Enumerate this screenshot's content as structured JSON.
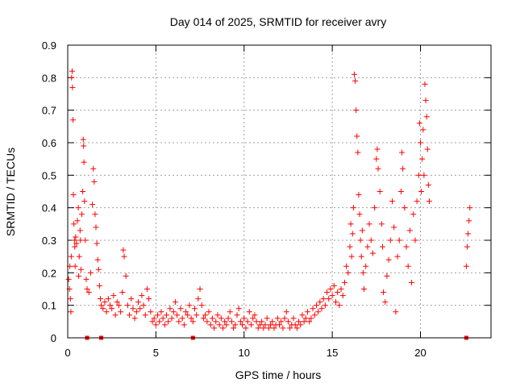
{
  "chart_data": {
    "type": "scatter",
    "title": "Day 014 of 2025, SRMTID for receiver avry",
    "xlabel": "GPS time / hours",
    "ylabel": "SRMTID / TECUs",
    "xlim": [
      0,
      24
    ],
    "ylim": [
      0,
      0.9
    ],
    "xticks": [
      0,
      5,
      10,
      15,
      20
    ],
    "yticks": [
      0,
      0.1,
      0.2,
      0.3,
      0.4,
      0.5,
      0.6,
      0.7,
      0.8,
      0.9
    ],
    "xtick_labels": [
      "0",
      "5",
      "10",
      "15",
      "20"
    ],
    "ytick_labels": [
      "0",
      "0.1",
      "0.2",
      "0.3",
      "0.4",
      "0.5",
      "0.6",
      "0.7",
      "0.8",
      "0.9"
    ],
    "grid": true,
    "marker": "+",
    "color": "#ff0000",
    "series": [
      {
        "name": "SRMTID",
        "points": [
          [
            0.05,
            0.18
          ],
          [
            0.1,
            0.15
          ],
          [
            0.12,
            0.22
          ],
          [
            0.15,
            0.12
          ],
          [
            0.18,
            0.08
          ],
          [
            0.2,
            0.25
          ],
          [
            0.22,
            0.8
          ],
          [
            0.25,
            0.82
          ],
          [
            0.27,
            0.77
          ],
          [
            0.3,
            0.67
          ],
          [
            0.32,
            0.44
          ],
          [
            0.35,
            0.35
          ],
          [
            0.38,
            0.3
          ],
          [
            0.4,
            0.28
          ],
          [
            0.42,
            0.22
          ],
          [
            0.45,
            0.31
          ],
          [
            0.5,
            0.29
          ],
          [
            0.55,
            0.36
          ],
          [
            0.6,
            0.4
          ],
          [
            0.62,
            0.19
          ],
          [
            0.65,
            0.25
          ],
          [
            0.7,
            0.33
          ],
          [
            0.72,
            0.3
          ],
          [
            0.75,
            0.21
          ],
          [
            0.8,
            0.38
          ],
          [
            0.85,
            0.45
          ],
          [
            0.88,
            0.61
          ],
          [
            0.9,
            0.59
          ],
          [
            0.92,
            0.54
          ],
          [
            0.95,
            0.42
          ],
          [
            1.0,
            0.3
          ],
          [
            1.05,
            0.18
          ],
          [
            1.1,
            0.15
          ],
          [
            1.2,
            0.14
          ],
          [
            1.3,
            0.2
          ],
          [
            1.4,
            0.41
          ],
          [
            1.45,
            0.52
          ],
          [
            1.5,
            0.48
          ],
          [
            1.55,
            0.38
          ],
          [
            1.6,
            0.34
          ],
          [
            1.65,
            0.29
          ],
          [
            1.7,
            0.24
          ],
          [
            1.75,
            0.21
          ],
          [
            1.8,
            0.16
          ],
          [
            1.85,
            0.12
          ],
          [
            1.9,
            0.1
          ],
          [
            2.0,
            0.09
          ],
          [
            2.1,
            0.11
          ],
          [
            2.2,
            0.08
          ],
          [
            2.3,
            0.12
          ],
          [
            2.4,
            0.1
          ],
          [
            2.5,
            0.09
          ],
          [
            2.6,
            0.13
          ],
          [
            2.7,
            0.07
          ],
          [
            2.8,
            0.11
          ],
          [
            2.9,
            0.1
          ],
          [
            3.0,
            0.08
          ],
          [
            3.1,
            0.14
          ],
          [
            3.15,
            0.27
          ],
          [
            3.2,
            0.25
          ],
          [
            3.3,
            0.19
          ],
          [
            3.4,
            0.1
          ],
          [
            3.5,
            0.07
          ],
          [
            3.6,
            0.12
          ],
          [
            3.7,
            0.09
          ],
          [
            3.8,
            0.06
          ],
          [
            3.9,
            0.08
          ],
          [
            4.0,
            0.11
          ],
          [
            4.1,
            0.09
          ],
          [
            4.2,
            0.13
          ],
          [
            4.3,
            0.1
          ],
          [
            4.4,
            0.07
          ],
          [
            4.5,
            0.15
          ],
          [
            4.6,
            0.12
          ],
          [
            4.7,
            0.08
          ],
          [
            4.8,
            0.05
          ],
          [
            4.9,
            0.06
          ],
          [
            5.0,
            0.04
          ],
          [
            5.1,
            0.07
          ],
          [
            5.2,
            0.05
          ],
          [
            5.3,
            0.08
          ],
          [
            5.4,
            0.06
          ],
          [
            5.5,
            0.04
          ],
          [
            5.6,
            0.07
          ],
          [
            5.7,
            0.05
          ],
          [
            5.8,
            0.09
          ],
          [
            5.9,
            0.06
          ],
          [
            6.0,
            0.08
          ],
          [
            6.1,
            0.11
          ],
          [
            6.2,
            0.07
          ],
          [
            6.3,
            0.05
          ],
          [
            6.4,
            0.09
          ],
          [
            6.5,
            0.06
          ],
          [
            6.6,
            0.04
          ],
          [
            6.7,
            0.08
          ],
          [
            6.8,
            0.07
          ],
          [
            6.9,
            0.1
          ],
          [
            7.0,
            0.06
          ],
          [
            7.1,
            0.05
          ],
          [
            7.2,
            0.09
          ],
          [
            7.3,
            0.07
          ],
          [
            7.4,
            0.12
          ],
          [
            7.5,
            0.15
          ],
          [
            7.6,
            0.1
          ],
          [
            7.7,
            0.06
          ],
          [
            7.8,
            0.07
          ],
          [
            7.9,
            0.05
          ],
          [
            8.0,
            0.08
          ],
          [
            8.1,
            0.04
          ],
          [
            8.2,
            0.06
          ],
          [
            8.3,
            0.03
          ],
          [
            8.4,
            0.05
          ],
          [
            8.5,
            0.07
          ],
          [
            8.6,
            0.04
          ],
          [
            8.7,
            0.06
          ],
          [
            8.8,
            0.03
          ],
          [
            8.9,
            0.05
          ],
          [
            9.0,
            0.04
          ],
          [
            9.1,
            0.06
          ],
          [
            9.2,
            0.08
          ],
          [
            9.3,
            0.05
          ],
          [
            9.4,
            0.03
          ],
          [
            9.5,
            0.04
          ],
          [
            9.6,
            0.07
          ],
          [
            9.7,
            0.09
          ],
          [
            9.8,
            0.05
          ],
          [
            9.9,
            0.04
          ],
          [
            10.0,
            0.06
          ],
          [
            10.1,
            0.03
          ],
          [
            10.2,
            0.05
          ],
          [
            10.3,
            0.08
          ],
          [
            10.4,
            0.04
          ],
          [
            10.5,
            0.06
          ],
          [
            10.6,
            0.07
          ],
          [
            10.7,
            0.05
          ],
          [
            10.8,
            0.03
          ],
          [
            10.9,
            0.04
          ],
          [
            11.0,
            0.05
          ],
          [
            11.1,
            0.03
          ],
          [
            11.2,
            0.04
          ],
          [
            11.3,
            0.06
          ],
          [
            11.4,
            0.03
          ],
          [
            11.5,
            0.04
          ],
          [
            11.6,
            0.05
          ],
          [
            11.7,
            0.03
          ],
          [
            11.8,
            0.04
          ],
          [
            11.9,
            0.06
          ],
          [
            12.0,
            0.04
          ],
          [
            12.1,
            0.05
          ],
          [
            12.2,
            0.03
          ],
          [
            12.3,
            0.06
          ],
          [
            12.4,
            0.08
          ],
          [
            12.5,
            0.05
          ],
          [
            12.6,
            0.03
          ],
          [
            12.7,
            0.04
          ],
          [
            12.8,
            0.06
          ],
          [
            12.9,
            0.04
          ],
          [
            13.0,
            0.03
          ],
          [
            13.1,
            0.05
          ],
          [
            13.2,
            0.04
          ],
          [
            13.3,
            0.07
          ],
          [
            13.4,
            0.05
          ],
          [
            13.5,
            0.06
          ],
          [
            13.6,
            0.08
          ],
          [
            13.7,
            0.05
          ],
          [
            13.8,
            0.06
          ],
          [
            13.9,
            0.09
          ],
          [
            14.0,
            0.07
          ],
          [
            14.1,
            0.1
          ],
          [
            14.2,
            0.08
          ],
          [
            14.3,
            0.11
          ],
          [
            14.4,
            0.09
          ],
          [
            14.5,
            0.12
          ],
          [
            14.6,
            0.1
          ],
          [
            14.7,
            0.14
          ],
          [
            14.8,
            0.12
          ],
          [
            14.9,
            0.15
          ],
          [
            15.0,
            0.13
          ],
          [
            15.1,
            0.16
          ],
          [
            15.2,
            0.11
          ],
          [
            15.3,
            0.14
          ],
          [
            15.4,
            0.1
          ],
          [
            15.5,
            0.15
          ],
          [
            15.6,
            0.13
          ],
          [
            15.7,
            0.17
          ],
          [
            15.8,
            0.22
          ],
          [
            15.9,
            0.2
          ],
          [
            16.0,
            0.28
          ],
          [
            16.05,
            0.35
          ],
          [
            16.1,
            0.25
          ],
          [
            16.15,
            0.32
          ],
          [
            16.2,
            0.4
          ],
          [
            16.25,
            0.81
          ],
          [
            16.3,
            0.79
          ],
          [
            16.35,
            0.7
          ],
          [
            16.4,
            0.62
          ],
          [
            16.45,
            0.57
          ],
          [
            16.5,
            0.44
          ],
          [
            16.55,
            0.38
          ],
          [
            16.6,
            0.3
          ],
          [
            16.65,
            0.25
          ],
          [
            16.7,
            0.33
          ],
          [
            16.75,
            0.2
          ],
          [
            16.8,
            0.15
          ],
          [
            16.9,
            0.22
          ],
          [
            17.0,
            0.28
          ],
          [
            17.1,
            0.35
          ],
          [
            17.2,
            0.3
          ],
          [
            17.3,
            0.26
          ],
          [
            17.4,
            0.4
          ],
          [
            17.5,
            0.55
          ],
          [
            17.55,
            0.58
          ],
          [
            17.6,
            0.52
          ],
          [
            17.7,
            0.45
          ],
          [
            17.8,
            0.35
          ],
          [
            17.85,
            0.28
          ],
          [
            17.9,
            0.14
          ],
          [
            18.0,
            0.11
          ],
          [
            18.1,
            0.19
          ],
          [
            18.2,
            0.24
          ],
          [
            18.3,
            0.3
          ],
          [
            18.4,
            0.42
          ],
          [
            18.5,
            0.34
          ],
          [
            18.6,
            0.08
          ],
          [
            18.7,
            0.25
          ],
          [
            18.8,
            0.3
          ],
          [
            18.9,
            0.45
          ],
          [
            18.95,
            0.57
          ],
          [
            19.0,
            0.52
          ],
          [
            19.1,
            0.4
          ],
          [
            19.2,
            0.28
          ],
          [
            19.3,
            0.22
          ],
          [
            19.4,
            0.33
          ],
          [
            19.5,
            0.17
          ],
          [
            19.6,
            0.38
          ],
          [
            19.7,
            0.3
          ],
          [
            19.8,
            0.42
          ],
          [
            19.9,
            0.5
          ],
          [
            19.95,
            0.66
          ],
          [
            20.0,
            0.6
          ],
          [
            20.05,
            0.45
          ],
          [
            20.1,
            0.55
          ],
          [
            20.15,
            0.64
          ],
          [
            20.2,
            0.5
          ],
          [
            20.25,
            0.78
          ],
          [
            20.3,
            0.73
          ],
          [
            20.35,
            0.68
          ],
          [
            20.4,
            0.58
          ],
          [
            20.45,
            0.47
          ],
          [
            20.5,
            0.42
          ],
          [
            22.6,
            0.22
          ],
          [
            22.65,
            0.28
          ],
          [
            22.7,
            0.32
          ],
          [
            22.75,
            0.36
          ],
          [
            22.8,
            0.4
          ]
        ]
      }
    ],
    "axis_markers_x": [
      1.1,
      1.9,
      7.1,
      22.6
    ]
  }
}
